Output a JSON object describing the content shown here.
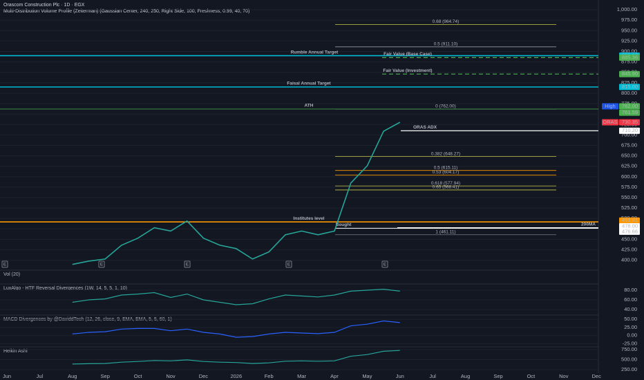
{
  "chart_data": {
    "type": "line",
    "title": "Orascom Construction Plc · 1D · EGX",
    "subtitle": "Multi-Distribution Volume Profile (Zeiterman) (Gaussian Center, 240, 250, Right Side, 100, Freshness, 0.99, 40, 70)",
    "categories": [
      "Jun",
      null,
      "Jul",
      null,
      "Aug",
      null,
      "Sep",
      null,
      "Oct",
      null,
      "Nov",
      null,
      "Dec",
      null,
      "2026",
      null,
      "Feb",
      null,
      "Mar",
      null,
      "Apr",
      null,
      "May",
      null,
      "Jun",
      null,
      "Jul",
      null,
      "Aug",
      null,
      "Sep",
      null,
      "Oct",
      null,
      "Nov",
      null,
      "Dec"
    ],
    "series": [
      {
        "name": "ORAS",
        "color": "#26a69a",
        "values": [
          null,
          null,
          null,
          null,
          390,
          398,
          403,
          436,
          453,
          478,
          470,
          494,
          453,
          436,
          428,
          403,
          420,
          461,
          470,
          461,
          470,
          585,
          626,
          709,
          730.35,
          null,
          null,
          null,
          null,
          null,
          null,
          null,
          null,
          null,
          null,
          null,
          null
        ]
      }
    ],
    "ylim": [
      378,
      1015
    ],
    "yticks": [
      {
        "value": 1000,
        "label": "1,000.00"
      },
      {
        "value": 975,
        "label": "975.00"
      },
      {
        "value": 950,
        "label": "950.00"
      },
      {
        "value": 925,
        "label": "925.00"
      },
      {
        "value": 900,
        "label": "900.00"
      },
      {
        "value": 875,
        "label": "875.00"
      },
      {
        "value": 850,
        "label": "850.00"
      },
      {
        "value": 825,
        "label": "825.00"
      },
      {
        "value": 800,
        "label": "800.00"
      },
      {
        "value": 775,
        "label": "775.00"
      },
      {
        "value": 750,
        "label": "750.00"
      },
      {
        "value": 725,
        "label": "725.00"
      },
      {
        "value": 700,
        "label": "700.00"
      },
      {
        "value": 675,
        "label": "675.00"
      },
      {
        "value": 650,
        "label": "650.00"
      },
      {
        "value": 625,
        "label": "625.00"
      },
      {
        "value": 600,
        "label": "600.00"
      },
      {
        "value": 575,
        "label": "575.00"
      },
      {
        "value": 550,
        "label": "550.00"
      },
      {
        "value": 525,
        "label": "525.00"
      },
      {
        "value": 500,
        "label": "500.00"
      },
      {
        "value": 475,
        "label": "475.00"
      },
      {
        "value": 450,
        "label": "450.00"
      },
      {
        "value": 425,
        "label": "425.00"
      },
      {
        "value": 400,
        "label": "400.00"
      }
    ],
    "grid": true,
    "levels": [
      {
        "name": "Rumble Annual Target",
        "value": 890,
        "value_label": "890.00",
        "color": "#00bcd4"
      },
      {
        "name": "Fair Value (Base Case)",
        "value": 885.36,
        "value_label": "885.36",
        "color": "#4caf50"
      },
      {
        "name": "Fair Value (Investment)",
        "value": 845.9,
        "value_label": "845.90",
        "color": "#4caf50"
      },
      {
        "name": "Faisal Annual Target",
        "value": 815,
        "value_label": "815.00",
        "color": "#00bcd4"
      },
      {
        "name": "ATH",
        "tag": "High",
        "value": 762,
        "value_label": "762.00",
        "color": "#4caf50"
      },
      {
        "value": 761.59,
        "value_label": "761.59",
        "color": "#4caf50"
      },
      {
        "tag": "ORAS",
        "value": 730.35,
        "value_label": "730.35",
        "color": "#f23645"
      },
      {
        "name": "ORAS ADX",
        "value": 710.2,
        "value_label": "710.20",
        "color": "#ffffff"
      },
      {
        "name": "Institutes level",
        "value": 491.81,
        "value_label": "491.81",
        "color": "#ff9800"
      },
      {
        "name": "200MA",
        "value": 478,
        "value_label": "478.00",
        "color": "#ffffff"
      },
      {
        "name": "Bought",
        "value": 476.66,
        "value_label": "476.66",
        "color": "#ffffff"
      }
    ],
    "fib_levels": [
      {
        "label": "0.68 (964.74)",
        "value": 964.74,
        "color": "#c8c846"
      },
      {
        "label": "0.5 (911.10)",
        "value": 911.1,
        "color": "#9598a1"
      },
      {
        "label": "0 (762.00)",
        "value": 762,
        "color": "#787b86"
      },
      {
        "label": "0.382 (648.27)",
        "value": 648.27,
        "color": "#c8c846"
      },
      {
        "label": "0.5 (615.11)",
        "value": 615.11,
        "color": "#ff9800"
      },
      {
        "label": "0.53 (604.17)",
        "value": 604.17,
        "color": "#ff9800"
      },
      {
        "label": "0.618 (577.94)",
        "value": 577.94,
        "color": "#c8c846"
      },
      {
        "label": "0.65 (568.41)",
        "value": 568.41,
        "color": "#c8c846"
      },
      {
        "label": "1 (461.11)",
        "value": 461.11,
        "color": "#787b86"
      }
    ],
    "earnings_markers": [
      "E",
      "E",
      "E",
      "E",
      "E"
    ],
    "panes": [
      {
        "title": "Vol (20)"
      },
      {
        "title": "LuxAlgo - HTF Reversal Divergences (1W, 14, 5, 5, 1, 10)",
        "ylim": [
          30,
          91.4
        ],
        "yticks": [
          {
            "value": 80,
            "label": "80.00"
          },
          {
            "value": 60,
            "label": "60.00"
          },
          {
            "value": 40,
            "label": "40.00"
          }
        ],
        "series": [
          {
            "color": "#26a69a",
            "values": [
              null,
              null,
              null,
              null,
              55,
              60,
              62,
              70,
              72,
              75,
              65,
              72,
              60,
              55,
              50,
              52,
              62,
              70,
              68,
              66,
              70,
              78,
              80,
              82,
              78,
              null,
              null,
              null,
              null,
              null,
              null,
              null,
              null,
              null,
              null,
              null,
              null
            ]
          }
        ]
      },
      {
        "title": "MACD Divergences by @DaviddTech (12, 26, close, 9, EMA, EMA, 5, 5, 60, 1)",
        "ylim": [
          -32.4,
          61
        ],
        "yticks": [
          {
            "value": 50,
            "label": "50.00"
          },
          {
            "value": 25,
            "label": "25.00"
          },
          {
            "value": 0,
            "label": "0.00"
          },
          {
            "value": -25,
            "label": "-25.00"
          }
        ],
        "series": [
          {
            "color": "#2962ff",
            "values": [
              null,
              null,
              null,
              null,
              5,
              10,
              12,
              20,
              22,
              22,
              15,
              20,
              10,
              5,
              -5,
              -3,
              5,
              10,
              8,
              6,
              10,
              30,
              35,
              45,
              40,
              null,
              null,
              null,
              null,
              null,
              null,
              null,
              null,
              null,
              null,
              null,
              null
            ]
          }
        ]
      },
      {
        "title": "Heikin Ashi",
        "ylim": [
          164,
          802
        ],
        "yticks": [
          {
            "value": 750,
            "label": "750.00"
          },
          {
            "value": 500,
            "label": "500.00"
          },
          {
            "value": 250,
            "label": "250.00"
          }
        ]
      }
    ]
  }
}
